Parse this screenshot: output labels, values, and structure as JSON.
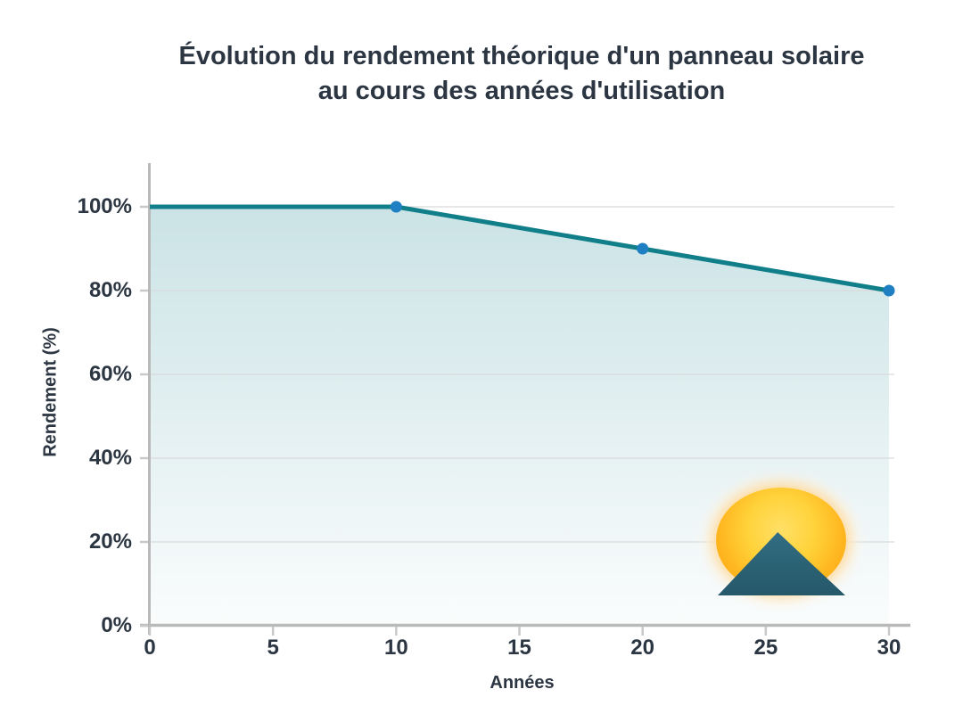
{
  "title": {
    "line1": "Évolution du rendement théorique d'un panneau solaire",
    "line2": "au cours des années d'utilisation"
  },
  "chart_data": {
    "type": "area",
    "title": "Évolution du rendement théorique d'un panneau solaire au cours des années d'utilisation",
    "xlabel": "Années",
    "ylabel": "Rendement (%)",
    "x": [
      0,
      10,
      20,
      30
    ],
    "values": [
      100,
      100,
      90,
      80
    ],
    "markers_at": [
      [
        10,
        100
      ],
      [
        20,
        90
      ],
      [
        30,
        80
      ]
    ],
    "xlim": [
      0,
      30
    ],
    "ylim": [
      0,
      100
    ],
    "x_tick_values": [
      0,
      5,
      10,
      15,
      20,
      25,
      30
    ],
    "x_tick_labels": [
      "0",
      "5",
      "10",
      "15",
      "20",
      "25",
      "30"
    ],
    "y_tick_values": [
      0,
      20,
      40,
      60,
      80,
      100
    ],
    "y_tick_labels": [
      "0%",
      "20%",
      "40%",
      "60%",
      "80%",
      "100%"
    ],
    "grid": true,
    "legend": false,
    "colors": {
      "line": "#107f8a",
      "marker": "#1e7fc2",
      "fill_top": "rgba(16,127,138,0.22)",
      "fill_bottom": "rgba(16,127,138,0.02)",
      "axis": "#b9b9b9",
      "tick": "#c9c9c9",
      "grid": "#d9d9d9",
      "text": "#2c3642"
    }
  },
  "logo": {
    "name": "sun-over-mountain",
    "sun_inner_color": "#ffe066",
    "sun_outer_color": "#f9a00d",
    "mountain_color": "#2a6173"
  }
}
